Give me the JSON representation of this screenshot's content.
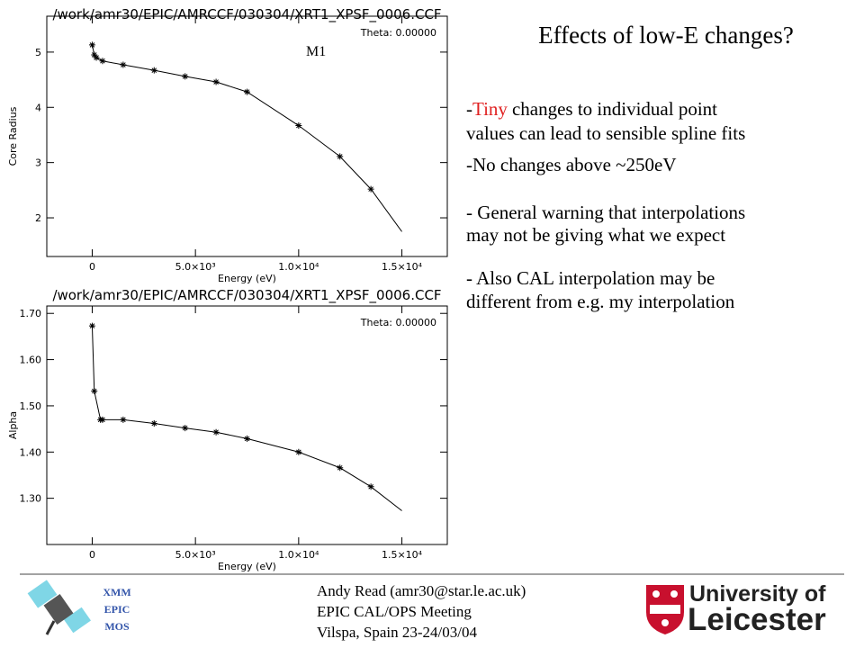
{
  "chart_data": [
    {
      "type": "scatter",
      "title": "/work/amr30/EPIC/AMRCCF/030304/XRT1_XPSF_0006.CCF",
      "annotation": "Theta: 0.00000",
      "xlabel": "Energy (eV)",
      "ylabel": "Core Radius",
      "xlim": [
        -2200,
        17200
      ],
      "ylim": [
        1.3,
        5.65
      ],
      "xticks": [
        0,
        {
          "value": 5000,
          "label": "5.0×10³"
        },
        {
          "value": 10000,
          "label": "1.0×10⁴"
        },
        {
          "value": 15000,
          "label": "1.5×10⁴"
        }
      ],
      "yticks": [
        2,
        3,
        4,
        5
      ],
      "points": {
        "x": [
          0,
          100,
          200,
          500,
          1500,
          3000,
          4500,
          6000,
          7500,
          10000,
          12000,
          13500
        ],
        "values": [
          5.13,
          4.95,
          4.9,
          4.84,
          4.77,
          4.67,
          4.56,
          4.46,
          4.28,
          3.67,
          3.11,
          2.52
        ]
      },
      "fit": {
        "x": [
          0,
          100,
          200,
          500,
          1500,
          3000,
          4500,
          6000,
          7500,
          10000,
          12000,
          13500,
          15000
        ],
        "values": [
          5.13,
          4.95,
          4.9,
          4.84,
          4.77,
          4.67,
          4.56,
          4.46,
          4.28,
          3.67,
          3.11,
          2.52,
          1.75
        ]
      },
      "color": "#000000"
    },
    {
      "type": "scatter",
      "title": "/work/amr30/EPIC/AMRCCF/030304/XRT1_XPSF_0006.CCF",
      "annotation": "Theta: 0.00000",
      "xlabel": "Energy (eV)",
      "ylabel": "Alpha",
      "xlim": [
        -2200,
        17200
      ],
      "ylim": [
        1.2,
        1.716
      ],
      "xticks": [
        0,
        {
          "value": 5000,
          "label": "5.0×10³"
        },
        {
          "value": 10000,
          "label": "1.0×10⁴"
        },
        {
          "value": 15000,
          "label": "1.5×10⁴"
        }
      ],
      "yticks": [
        {
          "value": 1.3,
          "label": "1.30"
        },
        {
          "value": 1.4,
          "label": "1.40"
        },
        {
          "value": 1.5,
          "label": "1.50"
        },
        {
          "value": 1.6,
          "label": "1.60"
        },
        {
          "value": 1.7,
          "label": "1.70"
        }
      ],
      "points": {
        "x": [
          0,
          100,
          400,
          500,
          1500,
          3000,
          4500,
          6000,
          7500,
          10000,
          12000,
          13500
        ],
        "values": [
          1.673,
          1.532,
          1.47,
          1.47,
          1.47,
          1.462,
          1.452,
          1.443,
          1.429,
          1.4,
          1.366,
          1.325
        ]
      },
      "fit": {
        "x": [
          0,
          100,
          400,
          500,
          1500,
          3000,
          4500,
          6000,
          7500,
          10000,
          12000,
          13500,
          15000
        ],
        "values": [
          1.673,
          1.532,
          1.47,
          1.47,
          1.47,
          1.462,
          1.452,
          1.443,
          1.429,
          1.4,
          1.366,
          1.325,
          1.273
        ]
      },
      "color": "#000000"
    }
  ],
  "slide": {
    "title": "Effects of low-E changes?",
    "plot_label": "M1",
    "bullets": [
      {
        "dash": "-",
        "highlight": "Tiny",
        "lines": [
          "changes to individual point",
          "values can lead to sensible spline fits"
        ]
      },
      {
        "lines": [
          "-No changes above ~250eV"
        ]
      },
      {
        "lines": [
          "- General warning that interpolations",
          "may not be giving what we expect"
        ]
      },
      {
        "lines": [
          "- Also CAL interpolation may be",
          "different from e.g. my interpolation"
        ]
      }
    ],
    "footer": {
      "badge": [
        "XMM",
        "EPIC",
        "MOS"
      ],
      "lines": [
        "Andy Read (amr30@star.le.ac.uk)",
        "EPIC CAL/OPS Meeting",
        "Vilspa, Spain 23-24/03/04"
      ],
      "logo": [
        "University of",
        "Leicester"
      ]
    }
  }
}
